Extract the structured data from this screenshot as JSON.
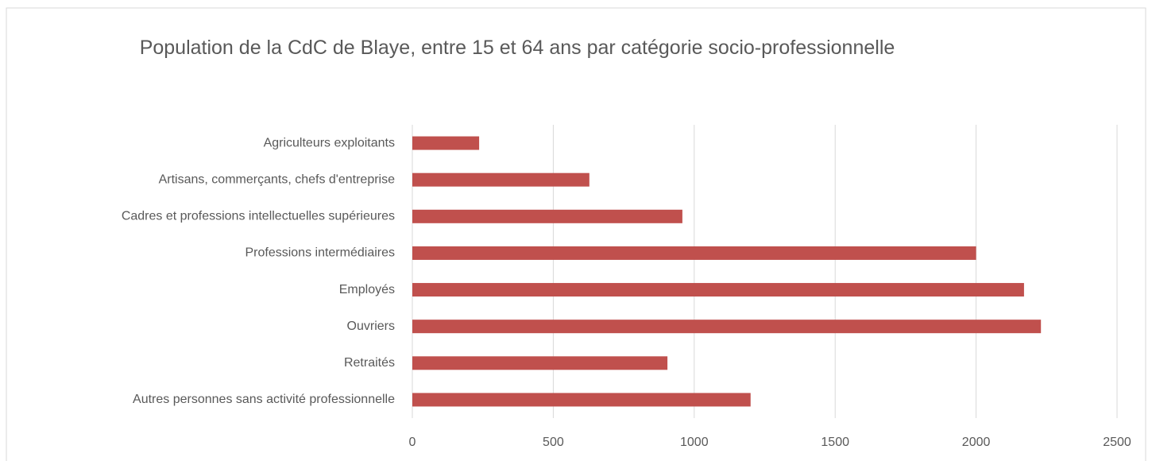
{
  "chart_data": {
    "type": "hbar",
    "title": "Population de la CdC de Blaye, entre 15 et 64 ans par catégorie socio-professionnelle",
    "categories": [
      "Agriculteurs exploitants",
      "Artisans, commerçants, chefs d'entreprise",
      "Cadres et professions intellectuelles supérieures",
      "Professions intermédiaires",
      "Employés",
      "Ouvriers",
      "Retraités",
      "Autres personnes sans activité professionnelle"
    ],
    "values": [
      237,
      628,
      958,
      2000,
      2170,
      2230,
      905,
      1200
    ],
    "color": "#c0504d",
    "xlim": [
      0,
      2500
    ],
    "xticks": [
      0,
      500,
      1000,
      1500,
      2000,
      2500
    ],
    "grid": true
  }
}
